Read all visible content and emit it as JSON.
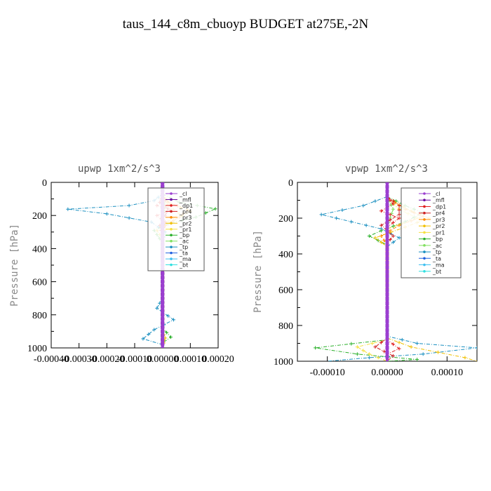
{
  "figure_title": "taus_144_c8m_cbuoyp  BUDGET at275E,-2N",
  "chart_data": [
    {
      "type": "line",
      "title": "upwp  1xm^2/s^3",
      "ylabel": "Pressure [hPa]",
      "xlabel": "",
      "xlim": [
        -0.0004,
        0.0002
      ],
      "ylim": [
        1000,
        0
      ],
      "x_ticks": [
        "-0.00040",
        "-0.00030",
        "-0.00020",
        "-0.00010",
        "0.00000",
        "0.00010",
        "0.00020"
      ],
      "x_tick_values": [
        -0.0004,
        -0.0003,
        -0.0002,
        -0.0001,
        0.0,
        0.0001,
        0.0002
      ],
      "y_ticks": [
        "0",
        "200",
        "400",
        "600",
        "800",
        "1000"
      ],
      "y_tick_values": [
        0,
        200,
        400,
        600,
        800,
        1000
      ],
      "legend_placement": "top-right",
      "series": [
        {
          "name": "_cl",
          "color": "#9b3fd0",
          "marker": "+",
          "points": [
            [
              0,
              0
            ],
            [
              0,
              1000
            ]
          ]
        },
        {
          "name": "_mfl",
          "color": "#6a0aa0",
          "marker": "+",
          "points": [
            [
              0,
              0
            ],
            [
              0,
              1000
            ]
          ]
        },
        {
          "name": "_dp1",
          "color": "#e02020",
          "marker": "+",
          "points": [
            [
              0,
              80
            ],
            [
              1e-05,
              110
            ],
            [
              -2e-05,
              140
            ],
            [
              3e-05,
              170
            ],
            [
              -2e-05,
              200
            ],
            [
              1e-05,
              240
            ],
            [
              0,
              300
            ],
            [
              0,
              1000
            ]
          ]
        },
        {
          "name": "_pr4",
          "color": "#d02020",
          "marker": "+",
          "points": [
            [
              0,
              80
            ],
            [
              -1e-05,
              120
            ],
            [
              2e-05,
              160
            ],
            [
              1e-05,
              200
            ],
            [
              -1e-05,
              260
            ],
            [
              0,
              320
            ],
            [
              0,
              1000
            ]
          ]
        },
        {
          "name": "_pr3",
          "color": "#ff8c00",
          "marker": "+",
          "points": [
            [
              0,
              80
            ],
            [
              2e-05,
              120
            ],
            [
              9e-05,
              165
            ],
            [
              6e-05,
              210
            ],
            [
              1e-05,
              260
            ],
            [
              0,
              320
            ],
            [
              0,
              1000
            ]
          ]
        },
        {
          "name": "_pr2",
          "color": "#f0c000",
          "marker": "+",
          "points": [
            [
              0,
              80
            ],
            [
              3e-05,
              130
            ],
            [
              0.0001,
              175
            ],
            [
              4e-05,
              230
            ],
            [
              -2e-05,
              290
            ],
            [
              0,
              340
            ],
            [
              0,
              900
            ],
            [
              1e-05,
              940
            ],
            [
              0,
              1000
            ]
          ]
        },
        {
          "name": "_pr1",
          "color": "#f6e040",
          "marker": "+",
          "points": [
            [
              0,
              80
            ],
            [
              2e-05,
              140
            ],
            [
              6e-05,
              190
            ],
            [
              0,
              260
            ],
            [
              0,
              1000
            ]
          ]
        },
        {
          "name": "_bp",
          "color": "#2ab02a",
          "marker": "+",
          "points": [
            [
              0,
              70
            ],
            [
              6e-05,
              120
            ],
            [
              0.00019,
              160
            ],
            [
              0.00012,
              210
            ],
            [
              2e-05,
              250
            ],
            [
              -3e-05,
              290
            ],
            [
              -1e-05,
              340
            ],
            [
              0,
              360
            ],
            [
              0,
              880
            ],
            [
              3e-05,
              935
            ],
            [
              0,
              970
            ],
            [
              0,
              1000
            ]
          ]
        },
        {
          "name": "_ac",
          "color": "#80e060",
          "marker": "+",
          "points": [
            [
              0,
              80
            ],
            [
              1e-05,
              150
            ],
            [
              0,
              250
            ],
            [
              0,
              1000
            ]
          ]
        },
        {
          "name": "_tp",
          "color": "#1a8fc0",
          "marker": "*",
          "points": [
            [
              0,
              70
            ],
            [
              -3e-05,
              110
            ],
            [
              -0.00012,
              140
            ],
            [
              -0.00034,
              162
            ],
            [
              -0.0002,
              190
            ],
            [
              -4e-05,
              240
            ],
            [
              1e-05,
              300
            ],
            [
              0,
              360
            ],
            [
              0,
              700
            ],
            [
              -2e-05,
              760
            ],
            [
              4e-05,
              830
            ],
            [
              -3e-05,
              890
            ],
            [
              -7e-05,
              945
            ],
            [
              0,
              980
            ],
            [
              0,
              1000
            ]
          ]
        },
        {
          "name": "_ta",
          "color": "#2060e0",
          "marker": "+",
          "points": [
            [
              0,
              0
            ],
            [
              0,
              1000
            ]
          ]
        },
        {
          "name": "_ma",
          "color": "#40c0f0",
          "marker": "-",
          "points": [
            [
              0,
              0
            ],
            [
              0,
              1000
            ]
          ]
        },
        {
          "name": "_bt",
          "color": "#30e0e0",
          "marker": "o",
          "points": [
            [
              0,
              0
            ],
            [
              0,
              1000
            ]
          ]
        }
      ]
    },
    {
      "type": "line",
      "title": "vpwp  1xm^2/s^3",
      "ylabel": "Pressure [hPa]",
      "xlabel": "",
      "xlim": [
        -0.00015,
        0.00015
      ],
      "ylim": [
        1000,
        0
      ],
      "x_ticks": [
        "-0.00010",
        "0.00000",
        "0.00010"
      ],
      "x_tick_values": [
        -0.0001,
        0.0,
        0.0001
      ],
      "y_ticks": [
        "0",
        "200",
        "400",
        "600",
        "800",
        "1000"
      ],
      "y_tick_values": [
        0,
        200,
        400,
        600,
        800,
        1000
      ],
      "legend_placement": "top-right",
      "series": [
        {
          "name": "_cl",
          "color": "#9b3fd0",
          "marker": "+",
          "points": [
            [
              0,
              0
            ],
            [
              0,
              1000
            ]
          ]
        },
        {
          "name": "_mfl",
          "color": "#6a0aa0",
          "marker": "+",
          "points": [
            [
              0,
              0
            ],
            [
              0,
              1000
            ]
          ]
        },
        {
          "name": "_dp1",
          "color": "#e02020",
          "marker": "+",
          "points": [
            [
              0,
              80
            ],
            [
              1e-05,
              120
            ],
            [
              -1e-05,
              160
            ],
            [
              2e-05,
              200
            ],
            [
              0,
              250
            ],
            [
              0,
              880
            ],
            [
              2e-05,
              930
            ],
            [
              0,
              960
            ],
            [
              0,
              1000
            ]
          ]
        },
        {
          "name": "_pr4",
          "color": "#d02020",
          "marker": "+",
          "points": [
            [
              0,
              80
            ],
            [
              2e-05,
              130
            ],
            [
              2e-05,
              180
            ],
            [
              -1e-05,
              240
            ],
            [
              1e-05,
              300
            ],
            [
              0,
              340
            ],
            [
              0,
              870
            ],
            [
              -2e-05,
              920
            ],
            [
              1e-05,
              970
            ],
            [
              0,
              1000
            ]
          ]
        },
        {
          "name": "_pr3",
          "color": "#ff8c00",
          "marker": "+",
          "points": [
            [
              0,
              80
            ],
            [
              3e-05,
              150
            ],
            [
              6e-05,
              190
            ],
            [
              2e-05,
              240
            ],
            [
              -1e-05,
              300
            ],
            [
              0,
              350
            ],
            [
              0,
              1000
            ]
          ]
        },
        {
          "name": "_pr2",
          "color": "#f0c000",
          "marker": "+",
          "points": [
            [
              0,
              90
            ],
            [
              4e-05,
              160
            ],
            [
              7e-05,
              200
            ],
            [
              3e-05,
              250
            ],
            [
              -2e-05,
              310
            ],
            [
              0,
              360
            ],
            [
              0,
              870
            ],
            [
              4e-05,
              920
            ],
            [
              0.00013,
              980
            ],
            [
              0.00015,
              1000
            ]
          ]
        },
        {
          "name": "_pr1",
          "color": "#f6e040",
          "marker": "+",
          "points": [
            [
              0,
              90
            ],
            [
              2e-05,
              150
            ],
            [
              5e-05,
              200
            ],
            [
              0,
              260
            ],
            [
              0,
              880
            ],
            [
              -5e-05,
              920
            ],
            [
              -3e-05,
              960
            ],
            [
              0,
              1000
            ]
          ]
        },
        {
          "name": "_bp",
          "color": "#2ab02a",
          "marker": "+",
          "points": [
            [
              0,
              80
            ],
            [
              3e-05,
              130
            ],
            [
              6e-05,
              170
            ],
            [
              3e-05,
              220
            ],
            [
              -1e-05,
              270
            ],
            [
              -3e-05,
              300
            ],
            [
              0,
              350
            ],
            [
              0,
              880
            ],
            [
              -0.00012,
              925
            ],
            [
              -5e-05,
              960
            ],
            [
              5e-05,
              990
            ],
            [
              0,
              1000
            ]
          ]
        },
        {
          "name": "_ac",
          "color": "#80e060",
          "marker": "+",
          "points": [
            [
              0,
              80
            ],
            [
              1e-05,
              150
            ],
            [
              0,
              250
            ],
            [
              0,
              1000
            ]
          ]
        },
        {
          "name": "_tp",
          "color": "#1a8fc0",
          "marker": "*",
          "points": [
            [
              0,
              80
            ],
            [
              -4e-05,
              130
            ],
            [
              -0.00011,
              180
            ],
            [
              -6e-05,
              220
            ],
            [
              -1e-05,
              260
            ],
            [
              2e-05,
              310
            ],
            [
              0,
              360
            ],
            [
              0,
              860
            ],
            [
              5e-05,
              900
            ],
            [
              0.00015,
              925
            ],
            [
              6e-05,
              960
            ],
            [
              -3e-05,
              980
            ],
            [
              -0.0001,
              1000
            ]
          ]
        },
        {
          "name": "_ta",
          "color": "#2060e0",
          "marker": "+",
          "points": [
            [
              0,
              0
            ],
            [
              0,
              1000
            ]
          ]
        },
        {
          "name": "_ma",
          "color": "#40c0f0",
          "marker": "-",
          "points": [
            [
              0,
              0
            ],
            [
              0,
              1000
            ]
          ]
        },
        {
          "name": "_bt",
          "color": "#30e0e0",
          "marker": "o",
          "points": [
            [
              0,
              0
            ],
            [
              0,
              1000
            ]
          ]
        }
      ]
    }
  ]
}
